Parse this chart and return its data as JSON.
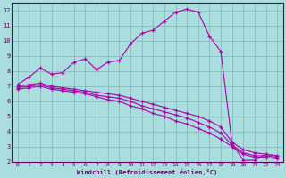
{
  "xlabel": "Windchill (Refroidissement éolien,°C)",
  "xlim": [
    -0.5,
    23.5
  ],
  "ylim": [
    2,
    12.5
  ],
  "xticks": [
    0,
    1,
    2,
    3,
    4,
    5,
    6,
    7,
    8,
    9,
    10,
    11,
    12,
    13,
    14,
    15,
    16,
    17,
    18,
    19,
    20,
    21,
    22,
    23
  ],
  "yticks": [
    2,
    3,
    4,
    5,
    6,
    7,
    8,
    9,
    10,
    11,
    12
  ],
  "background_color": "#aadddd",
  "grid_color": "#88bbbb",
  "line_color": "#aa00aa",
  "line1_x": [
    0,
    1,
    2,
    3,
    4,
    5,
    6,
    7,
    8,
    9,
    10,
    11,
    12,
    13,
    14,
    15,
    16,
    17,
    18,
    19,
    20,
    21,
    22,
    23
  ],
  "line1_y": [
    7.1,
    7.6,
    8.2,
    7.8,
    7.9,
    8.6,
    8.8,
    8.1,
    8.6,
    8.7,
    9.8,
    10.5,
    10.7,
    11.3,
    11.9,
    12.1,
    11.9,
    10.3,
    9.3,
    3.2,
    2.1,
    2.1,
    2.5,
    2.4
  ],
  "line2_x": [
    0,
    1,
    2,
    3,
    4,
    5,
    6,
    7,
    8,
    9,
    10,
    11,
    12,
    13,
    14,
    15,
    16,
    17,
    18,
    19,
    20,
    21,
    22,
    23
  ],
  "line2_y": [
    7.0,
    7.1,
    7.2,
    7.0,
    6.9,
    6.8,
    6.7,
    6.6,
    6.5,
    6.4,
    6.2,
    6.0,
    5.8,
    5.6,
    5.4,
    5.2,
    5.0,
    4.7,
    4.3,
    3.3,
    2.8,
    2.6,
    2.5,
    2.4
  ],
  "line3_x": [
    0,
    1,
    2,
    3,
    4,
    5,
    6,
    7,
    8,
    9,
    10,
    11,
    12,
    13,
    14,
    15,
    16,
    17,
    18,
    19,
    20,
    21,
    22,
    23
  ],
  "line3_y": [
    6.9,
    7.0,
    7.1,
    6.9,
    6.8,
    6.7,
    6.6,
    6.4,
    6.3,
    6.2,
    6.0,
    5.7,
    5.5,
    5.3,
    5.1,
    4.9,
    4.6,
    4.3,
    3.9,
    3.1,
    2.6,
    2.4,
    2.4,
    2.3
  ],
  "line4_x": [
    0,
    1,
    2,
    3,
    4,
    5,
    6,
    7,
    8,
    9,
    10,
    11,
    12,
    13,
    14,
    15,
    16,
    17,
    18,
    19,
    20,
    21,
    22,
    23
  ],
  "line4_y": [
    6.8,
    6.9,
    7.0,
    6.8,
    6.7,
    6.6,
    6.5,
    6.3,
    6.1,
    6.0,
    5.7,
    5.5,
    5.2,
    5.0,
    4.7,
    4.5,
    4.2,
    3.9,
    3.5,
    3.0,
    2.5,
    2.3,
    2.3,
    2.2
  ]
}
